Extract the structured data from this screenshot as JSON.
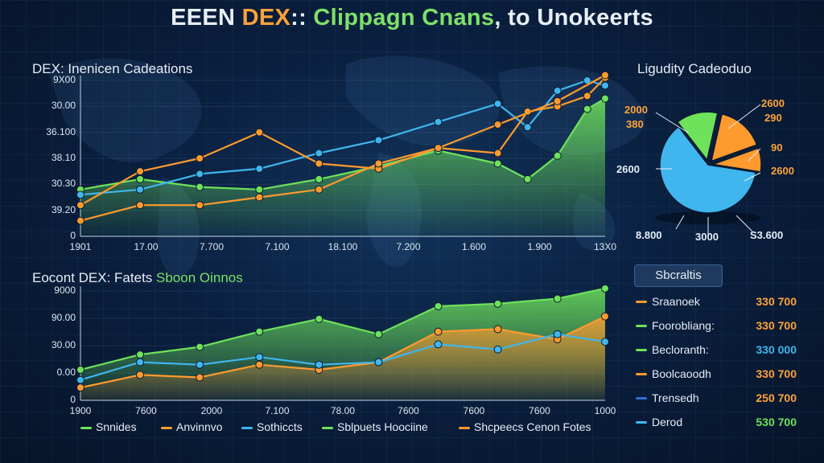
{
  "title": {
    "part1": "EEEN ",
    "part2": "DEX",
    "part3": ":: ",
    "part4": "Clippagn Cnans",
    "part5": ", to Unokeerts"
  },
  "bottom_title": {
    "main": "Eocont DEX: Fatets ",
    "accent": "Sboon Oinnos"
  },
  "colors": {
    "green": "#6ee25a",
    "orange": "#ff9a2e",
    "blue": "#3fb6ee",
    "darkblue": "#2f6fd0"
  },
  "chart_data": [
    {
      "type": "line",
      "title": "DEX: Inenicen Cadeations",
      "yticks": [
        "0",
        "39.20",
        "30.30",
        "38.10",
        "36.100",
        "30.00",
        "9X00"
      ],
      "xticks": [
        "1901",
        "17.00",
        "7.700",
        "7.100",
        "18.100",
        "7.200",
        "1.600",
        "1.900",
        "13X0"
      ],
      "ylim": [
        0,
        6
      ],
      "xlim": [
        0,
        8.8
      ],
      "series": [
        {
          "color": "green",
          "fill": true,
          "x": [
            0,
            1,
            2,
            3,
            4,
            5,
            6,
            7,
            7.5,
            8,
            8.5,
            8.8
          ],
          "y": [
            1.8,
            2.2,
            1.9,
            1.8,
            2.2,
            2.7,
            3.3,
            2.8,
            2.2,
            3.1,
            4.9,
            5.3
          ]
        },
        {
          "color": "blue",
          "fill": false,
          "x": [
            0,
            1,
            2,
            3,
            4,
            5,
            6,
            7,
            7.5,
            8,
            8.5,
            8.8
          ],
          "y": [
            1.6,
            1.8,
            2.4,
            2.6,
            3.2,
            3.7,
            4.4,
            5.1,
            4.2,
            5.6,
            6.0,
            5.8
          ]
        },
        {
          "color": "orange",
          "fill": false,
          "x": [
            0,
            1,
            2,
            3,
            4,
            5,
            6,
            7,
            7.5,
            8,
            8.5,
            8.8
          ],
          "y": [
            1.2,
            2.5,
            3.0,
            4.0,
            2.8,
            2.6,
            3.4,
            3.2,
            4.8,
            5.0,
            5.4,
            6.1
          ]
        },
        {
          "color": "orange",
          "fill": false,
          "x": [
            0,
            1,
            2,
            3,
            4,
            5,
            6,
            7,
            8,
            8.8
          ],
          "y": [
            0.6,
            1.2,
            1.2,
            1.5,
            1.8,
            2.8,
            3.4,
            4.3,
            5.2,
            6.2
          ]
        }
      ]
    },
    {
      "type": "area",
      "title": "",
      "yticks": [
        "0",
        "0.00",
        "30.00",
        "90.00",
        "9000"
      ],
      "xticks": [
        "1900",
        "7600",
        "2000",
        "7.100",
        "78.00",
        "7600",
        "7600",
        "7600",
        "1000"
      ],
      "ylim": [
        0,
        4.3
      ],
      "xlim": [
        0,
        8.8
      ],
      "series": [
        {
          "color": "green",
          "fill": true,
          "x": [
            0,
            1,
            2,
            3,
            4,
            5,
            6,
            7,
            8,
            8.8
          ],
          "y": [
            1.2,
            1.8,
            2.1,
            2.7,
            3.2,
            2.6,
            3.7,
            3.8,
            4.0,
            4.4
          ]
        },
        {
          "color": "orange",
          "fill": true,
          "x": [
            0,
            1,
            2,
            3,
            4,
            5,
            6,
            7,
            8,
            8.8
          ],
          "y": [
            0.5,
            1.0,
            0.9,
            1.4,
            1.2,
            1.5,
            2.7,
            2.8,
            2.4,
            3.3
          ]
        },
        {
          "color": "blue",
          "fill": false,
          "x": [
            0,
            1,
            2,
            3,
            4,
            5,
            6,
            7,
            8,
            8.8
          ],
          "y": [
            0.8,
            1.5,
            1.4,
            1.7,
            1.4,
            1.5,
            2.2,
            2.0,
            2.6,
            2.3
          ]
        }
      ]
    },
    {
      "type": "pie",
      "title": "Ligudity Cadeoduo",
      "slices": [
        {
          "color": "blue",
          "value": 62
        },
        {
          "color": "green",
          "value": 14
        },
        {
          "color": "orange",
          "value": 16
        },
        {
          "color": "orange",
          "value": 8
        }
      ],
      "labels": [
        {
          "text": "2000",
          "color": "#ffa23a",
          "pos": "top-left"
        },
        {
          "text": "380",
          "color": "#ffa23a",
          "pos": "top-left-2"
        },
        {
          "text": "2600",
          "color": "#ffa23a",
          "pos": "top-right"
        },
        {
          "text": "290",
          "color": "#ffa23a",
          "pos": "top-right-2"
        },
        {
          "text": "90",
          "color": "#ffa23a",
          "pos": "right"
        },
        {
          "text": "2600",
          "color": "#ffa23a",
          "pos": "right-2"
        },
        {
          "text": "2600",
          "color": "#e6edf6",
          "pos": "left"
        },
        {
          "text": "8.800",
          "color": "#e6edf6",
          "pos": "bottom-left"
        },
        {
          "text": "3000",
          "color": "#e6edf6",
          "pos": "bottom-mid"
        },
        {
          "text": "S3.600",
          "color": "#e6edf6",
          "pos": "bottom-right"
        }
      ]
    }
  ],
  "stats": {
    "header": "Sbcraltis",
    "rows": [
      {
        "name": "Sraanoek",
        "value": "330 700",
        "dash": "orange",
        "valcolor": "#ffa23a"
      },
      {
        "name": "Foorobliang:",
        "value": "330 700",
        "dash": "green",
        "valcolor": "#ffa23a"
      },
      {
        "name": "Becloranth:",
        "value": "330 000",
        "dash": "green",
        "valcolor": "#3fb6ee"
      },
      {
        "name": "Boolcaoodh",
        "value": "330 700",
        "dash": "orange",
        "valcolor": "#ffa23a"
      },
      {
        "name": "Trensedh",
        "value": "250 700",
        "dash": "darkblue",
        "valcolor": "#ffa23a"
      },
      {
        "name": "Derod",
        "value": "530 700",
        "dash": "blue",
        "valcolor": "#6ee25a"
      }
    ]
  },
  "legend": [
    {
      "label": "Snnides",
      "color": "green"
    },
    {
      "label": "Anvinnvo",
      "color": "orange"
    },
    {
      "label": "Sothiccts",
      "color": "blue"
    },
    {
      "label": "Sblpuets Hoociine",
      "color": "green"
    },
    {
      "label": "Shcpeecs Cenon Fotes",
      "color": "orange"
    }
  ]
}
